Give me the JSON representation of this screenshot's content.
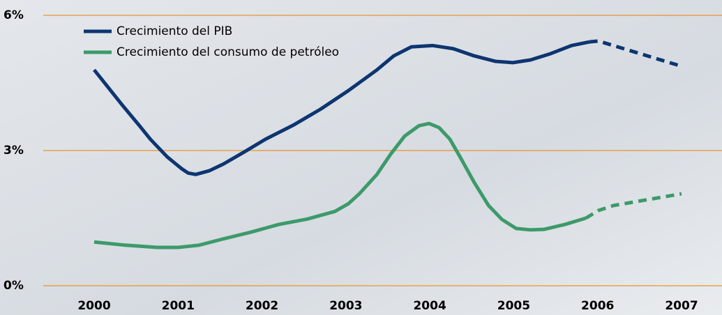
{
  "chart_data": {
    "type": "line",
    "ylim": [
      0,
      6
    ],
    "yticks": [
      {
        "value": 0,
        "label": "0%"
      },
      {
        "value": 3,
        "label": "3%"
      },
      {
        "value": 6,
        "label": "6%"
      }
    ],
    "xlim": [
      2000,
      2007
    ],
    "xticks": [
      2000,
      2001,
      2002,
      2003,
      2004,
      2005,
      2006,
      2007
    ],
    "grid": true,
    "grid_color": "#e8932e",
    "legend": "top-left",
    "dashed_from_x": 2006,
    "series": [
      {
        "name": "Crecimiento del PIB",
        "color": "#0d3570",
        "x": [
          2000,
          2000.12,
          2000.33,
          2000.54,
          2000.67,
          2000.87,
          2001.04,
          2001.12,
          2001.21,
          2001.37,
          2001.54,
          2001.79,
          2002.04,
          2002.37,
          2002.7,
          2003.03,
          2003.37,
          2003.57,
          2003.78,
          2004.03,
          2004.28,
          2004.53,
          2004.78,
          2004.99,
          2005.2,
          2005.44,
          2005.69,
          2005.9,
          2006.01,
          2007
        ],
        "values": [
          4.79,
          4.51,
          4.02,
          3.55,
          3.25,
          2.86,
          2.6,
          2.5,
          2.47,
          2.55,
          2.7,
          2.97,
          3.25,
          3.56,
          3.92,
          4.33,
          4.79,
          5.1,
          5.3,
          5.33,
          5.26,
          5.1,
          4.98,
          4.95,
          5.01,
          5.15,
          5.33,
          5.41,
          5.43,
          4.87
        ]
      },
      {
        "name": "Crecimiento del consumo de petróleo",
        "color": "#3d9a6a",
        "x": [
          2000,
          2000.37,
          2000.75,
          2001,
          2001.25,
          2001.54,
          2001.87,
          2002.2,
          2002.54,
          2002.87,
          2003.03,
          2003.16,
          2003.37,
          2003.53,
          2003.7,
          2003.87,
          2003.99,
          2004.11,
          2004.24,
          2004.36,
          2004.53,
          2004.7,
          2004.86,
          2005.03,
          2005.2,
          2005.36,
          2005.61,
          2005.86,
          2006.01,
          2006.19,
          2007
        ],
        "values": [
          0.97,
          0.9,
          0.85,
          0.85,
          0.9,
          1.04,
          1.19,
          1.36,
          1.48,
          1.65,
          1.82,
          2.04,
          2.47,
          2.91,
          3.32,
          3.55,
          3.6,
          3.51,
          3.25,
          2.86,
          2.29,
          1.78,
          1.47,
          1.27,
          1.24,
          1.25,
          1.36,
          1.5,
          1.67,
          1.78,
          2.04
        ]
      }
    ]
  }
}
